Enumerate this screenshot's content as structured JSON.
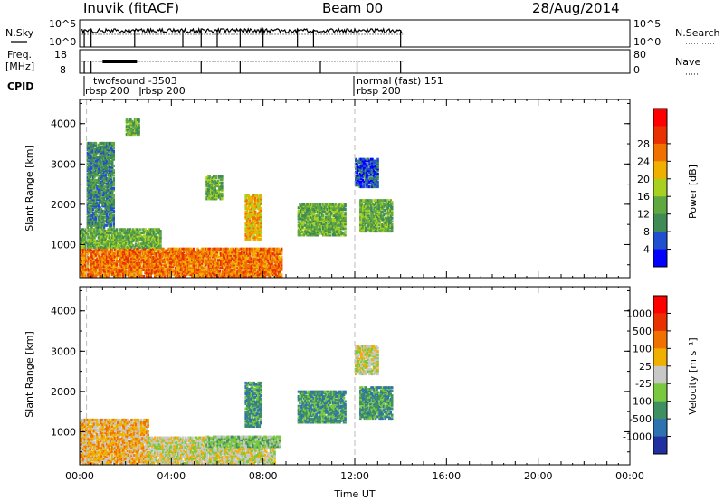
{
  "header": {
    "station": "Inuvik (fitACF)",
    "beam": "Beam 00",
    "date": "28/Aug/2014"
  },
  "top_panels": {
    "nsky_label": "N.Sky",
    "nsky_left_ticks": [
      "10^5",
      "10^0"
    ],
    "nsky_right_ticks": [
      "10^5",
      "10^0"
    ],
    "nsearch_label": "N.Search",
    "freq_label_line1": "Freq.",
    "freq_label_line2": "[MHz]",
    "freq_left_ticks": [
      "18",
      "8"
    ],
    "freq_right_ticks": [
      "80",
      "0"
    ],
    "nave_label": "Nave",
    "cpid_label": "CPID",
    "cpid_annotations": [
      {
        "text": "twofsound -3503",
        "t": 0.0
      },
      {
        "text": "rbsp 200",
        "t": 0.0
      },
      {
        "text": "rbsp 200",
        "t": 2.5
      },
      {
        "text": "normal (fast) 151",
        "t": 12.0
      },
      {
        "text": "rbsp 200",
        "t": 12.0
      }
    ]
  },
  "chart_data": [
    {
      "type": "heatmap",
      "panel": "power",
      "ylabel": "Slant Range [km]",
      "xlim": [
        0,
        24
      ],
      "ylim": [
        180,
        4600
      ],
      "yticks": [
        "1000",
        "2000",
        "3000",
        "4000"
      ],
      "colorbar": {
        "label": "Power [dB]",
        "ticks": [
          "4",
          "8",
          "12",
          "16",
          "20",
          "24",
          "28"
        ],
        "colors": [
          "#0000ff",
          "#2050d0",
          "#3f8a55",
          "#60a840",
          "#a8d020",
          "#f0b000",
          "#f07000",
          "#e83000",
          "#ff0000"
        ]
      },
      "regions": [
        {
          "t0": 0.0,
          "t1": 8.8,
          "r0": 180,
          "r1": 900,
          "level": 6
        },
        {
          "t0": 0.0,
          "t1": 3.5,
          "r0": 900,
          "r1": 1350,
          "level": 3
        },
        {
          "t0": 0.3,
          "t1": 1.5,
          "r0": 1400,
          "r1": 3500,
          "level": 2
        },
        {
          "t0": 2.0,
          "t1": 2.6,
          "r0": 3700,
          "r1": 4100,
          "level": 3
        },
        {
          "t0": 5.5,
          "t1": 6.2,
          "r0": 2100,
          "r1": 2700,
          "level": 3
        },
        {
          "t0": 7.2,
          "t1": 7.9,
          "r0": 1100,
          "r1": 2200,
          "level": 5
        },
        {
          "t0": 9.5,
          "t1": 11.6,
          "r0": 1200,
          "r1": 2000,
          "level": 3
        },
        {
          "t0": 12.2,
          "t1": 13.6,
          "r0": 1300,
          "r1": 2100,
          "level": 3
        },
        {
          "t0": 12.0,
          "t1": 13.0,
          "r0": 2400,
          "r1": 3100,
          "level": 1
        }
      ]
    },
    {
      "type": "heatmap",
      "panel": "velocity",
      "ylabel": "Slant Range [km]",
      "xlabel": "Time UT",
      "xlim": [
        0,
        24
      ],
      "ylim": [
        180,
        4600
      ],
      "xticks": [
        "00:00",
        "04:00",
        "08:00",
        "12:00",
        "16:00",
        "20:00",
        "00:00"
      ],
      "yticks": [
        "1000",
        "2000",
        "3000",
        "4000"
      ],
      "colorbar": {
        "label": "Velocity [m s⁻¹]",
        "ticks": [
          "1000",
          "500",
          "100",
          "25",
          "-25",
          "-100",
          "-500",
          "-1000"
        ],
        "colors": [
          "#2030a0",
          "#2e72b0",
          "#3f9060",
          "#7ac840",
          "#c8c8c8",
          "#f0b000",
          "#f07000",
          "#e83000",
          "#ff0000"
        ]
      },
      "regions": [
        {
          "t0": 0.0,
          "t1": 3.0,
          "r0": 180,
          "r1": 1300,
          "level": 5
        },
        {
          "t0": 3.0,
          "t1": 8.5,
          "r0": 180,
          "r1": 850,
          "level": 4
        },
        {
          "t0": 5.5,
          "t1": 8.7,
          "r0": 600,
          "r1": 850,
          "level": 3
        },
        {
          "t0": 7.2,
          "t1": 7.9,
          "r0": 1100,
          "r1": 2200,
          "level": 2
        },
        {
          "t0": 9.5,
          "t1": 11.6,
          "r0": 1200,
          "r1": 2000,
          "level": 2
        },
        {
          "t0": 12.2,
          "t1": 13.6,
          "r0": 1300,
          "r1": 2100,
          "level": 2
        },
        {
          "t0": 12.0,
          "t1": 13.0,
          "r0": 2400,
          "r1": 3100,
          "level": 4
        }
      ]
    }
  ]
}
